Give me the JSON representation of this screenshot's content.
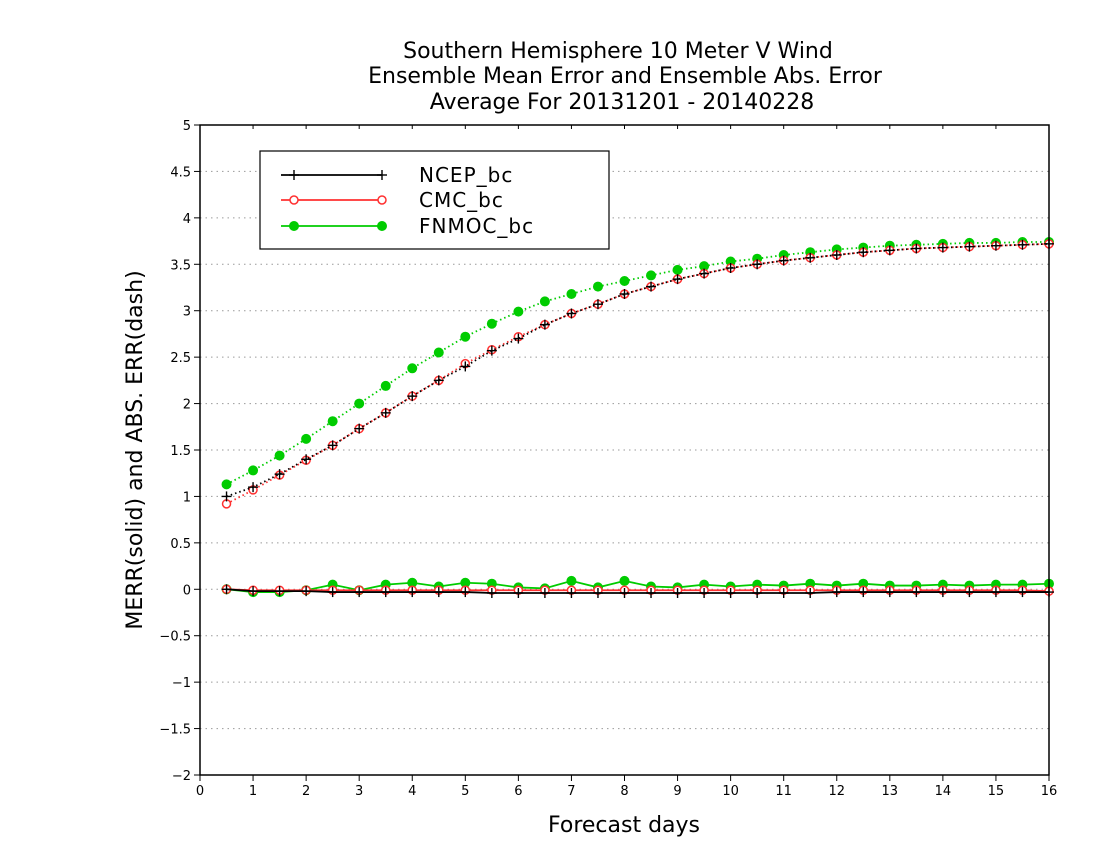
{
  "chart_data": {
    "type": "line",
    "title": [
      "Southern Hemisphere 10 Meter V Wind",
      "Ensemble Mean Error and Ensemble Abs. Error",
      "Average For 20131201 - 20140228"
    ],
    "xlabel": "Forecast days",
    "ylabel": "MERR(solid) and ABS. ERR(dash)",
    "xlim": [
      0,
      16
    ],
    "ylim": [
      -2,
      5
    ],
    "xticks": [
      0,
      1,
      2,
      3,
      4,
      5,
      6,
      7,
      8,
      9,
      10,
      11,
      12,
      13,
      14,
      15,
      16
    ],
    "yticks": [
      -2,
      -1.5,
      -1,
      -0.5,
      0,
      0.5,
      1,
      1.5,
      2,
      2.5,
      3,
      3.5,
      4,
      4.5,
      5
    ],
    "ytick_labels": [
      "−2",
      "−1.5",
      "−1",
      "−0.5",
      "0",
      "0.5",
      "1",
      "1.5",
      "2",
      "2.5",
      "3",
      "3.5",
      "4",
      "4.5",
      "5"
    ],
    "grid": "horizontal-dotted",
    "legend_position": "top-left",
    "x": [
      0.5,
      1,
      1.5,
      2,
      2.5,
      3,
      3.5,
      4,
      4.5,
      5,
      5.5,
      6,
      6.5,
      7,
      7.5,
      8,
      8.5,
      9,
      9.5,
      10,
      10.5,
      11,
      11.5,
      12,
      12.5,
      13,
      13.5,
      14,
      14.5,
      15,
      15.5,
      16
    ],
    "series": [
      {
        "name": "NCEP_bc",
        "color": "#000000",
        "marker": "plus",
        "merr": [
          0,
          -0.02,
          -0.02,
          -0.02,
          -0.03,
          -0.03,
          -0.03,
          -0.03,
          -0.03,
          -0.03,
          -0.04,
          -0.04,
          -0.04,
          -0.04,
          -0.04,
          -0.04,
          -0.04,
          -0.04,
          -0.04,
          -0.04,
          -0.04,
          -0.04,
          -0.04,
          -0.03,
          -0.03,
          -0.03,
          -0.03,
          -0.03,
          -0.03,
          -0.03,
          -0.03,
          -0.03
        ],
        "abserr": [
          1.0,
          1.1,
          1.24,
          1.4,
          1.55,
          1.73,
          1.9,
          2.08,
          2.25,
          2.4,
          2.57,
          2.7,
          2.85,
          2.97,
          3.07,
          3.18,
          3.26,
          3.34,
          3.4,
          3.46,
          3.5,
          3.54,
          3.57,
          3.6,
          3.63,
          3.65,
          3.67,
          3.68,
          3.69,
          3.7,
          3.71,
          3.72
        ]
      },
      {
        "name": "CMC_bc",
        "color": "#ff3030",
        "marker": "open-circle",
        "merr": [
          0,
          -0.01,
          -0.01,
          -0.01,
          -0.01,
          -0.01,
          -0.01,
          -0.01,
          -0.01,
          -0.01,
          -0.01,
          -0.01,
          -0.01,
          -0.01,
          -0.01,
          -0.01,
          -0.01,
          -0.01,
          -0.01,
          -0.01,
          -0.01,
          -0.01,
          -0.01,
          -0.01,
          -0.01,
          -0.01,
          -0.01,
          -0.01,
          -0.01,
          -0.01,
          -0.01,
          -0.02
        ],
        "abserr": [
          0.92,
          1.07,
          1.23,
          1.39,
          1.55,
          1.73,
          1.9,
          2.08,
          2.25,
          2.43,
          2.58,
          2.72,
          2.85,
          2.97,
          3.07,
          3.18,
          3.26,
          3.34,
          3.4,
          3.46,
          3.5,
          3.54,
          3.57,
          3.6,
          3.63,
          3.65,
          3.67,
          3.68,
          3.69,
          3.7,
          3.71,
          3.72
        ]
      },
      {
        "name": "FNMOC_bc",
        "color": "#00cc00",
        "marker": "filled-circle",
        "merr": [
          0,
          -0.03,
          -0.03,
          -0.01,
          0.05,
          -0.01,
          0.05,
          0.07,
          0.03,
          0.07,
          0.06,
          0.02,
          0.01,
          0.09,
          0.02,
          0.09,
          0.03,
          0.02,
          0.05,
          0.03,
          0.05,
          0.04,
          0.06,
          0.04,
          0.06,
          0.04,
          0.04,
          0.05,
          0.04,
          0.05,
          0.05,
          0.06
        ],
        "abserr": [
          1.13,
          1.28,
          1.44,
          1.62,
          1.81,
          2.0,
          2.19,
          2.38,
          2.55,
          2.72,
          2.86,
          2.99,
          3.1,
          3.18,
          3.26,
          3.32,
          3.38,
          3.44,
          3.48,
          3.53,
          3.56,
          3.6,
          3.63,
          3.66,
          3.68,
          3.7,
          3.71,
          3.72,
          3.73,
          3.73,
          3.74,
          3.74
        ]
      }
    ]
  }
}
